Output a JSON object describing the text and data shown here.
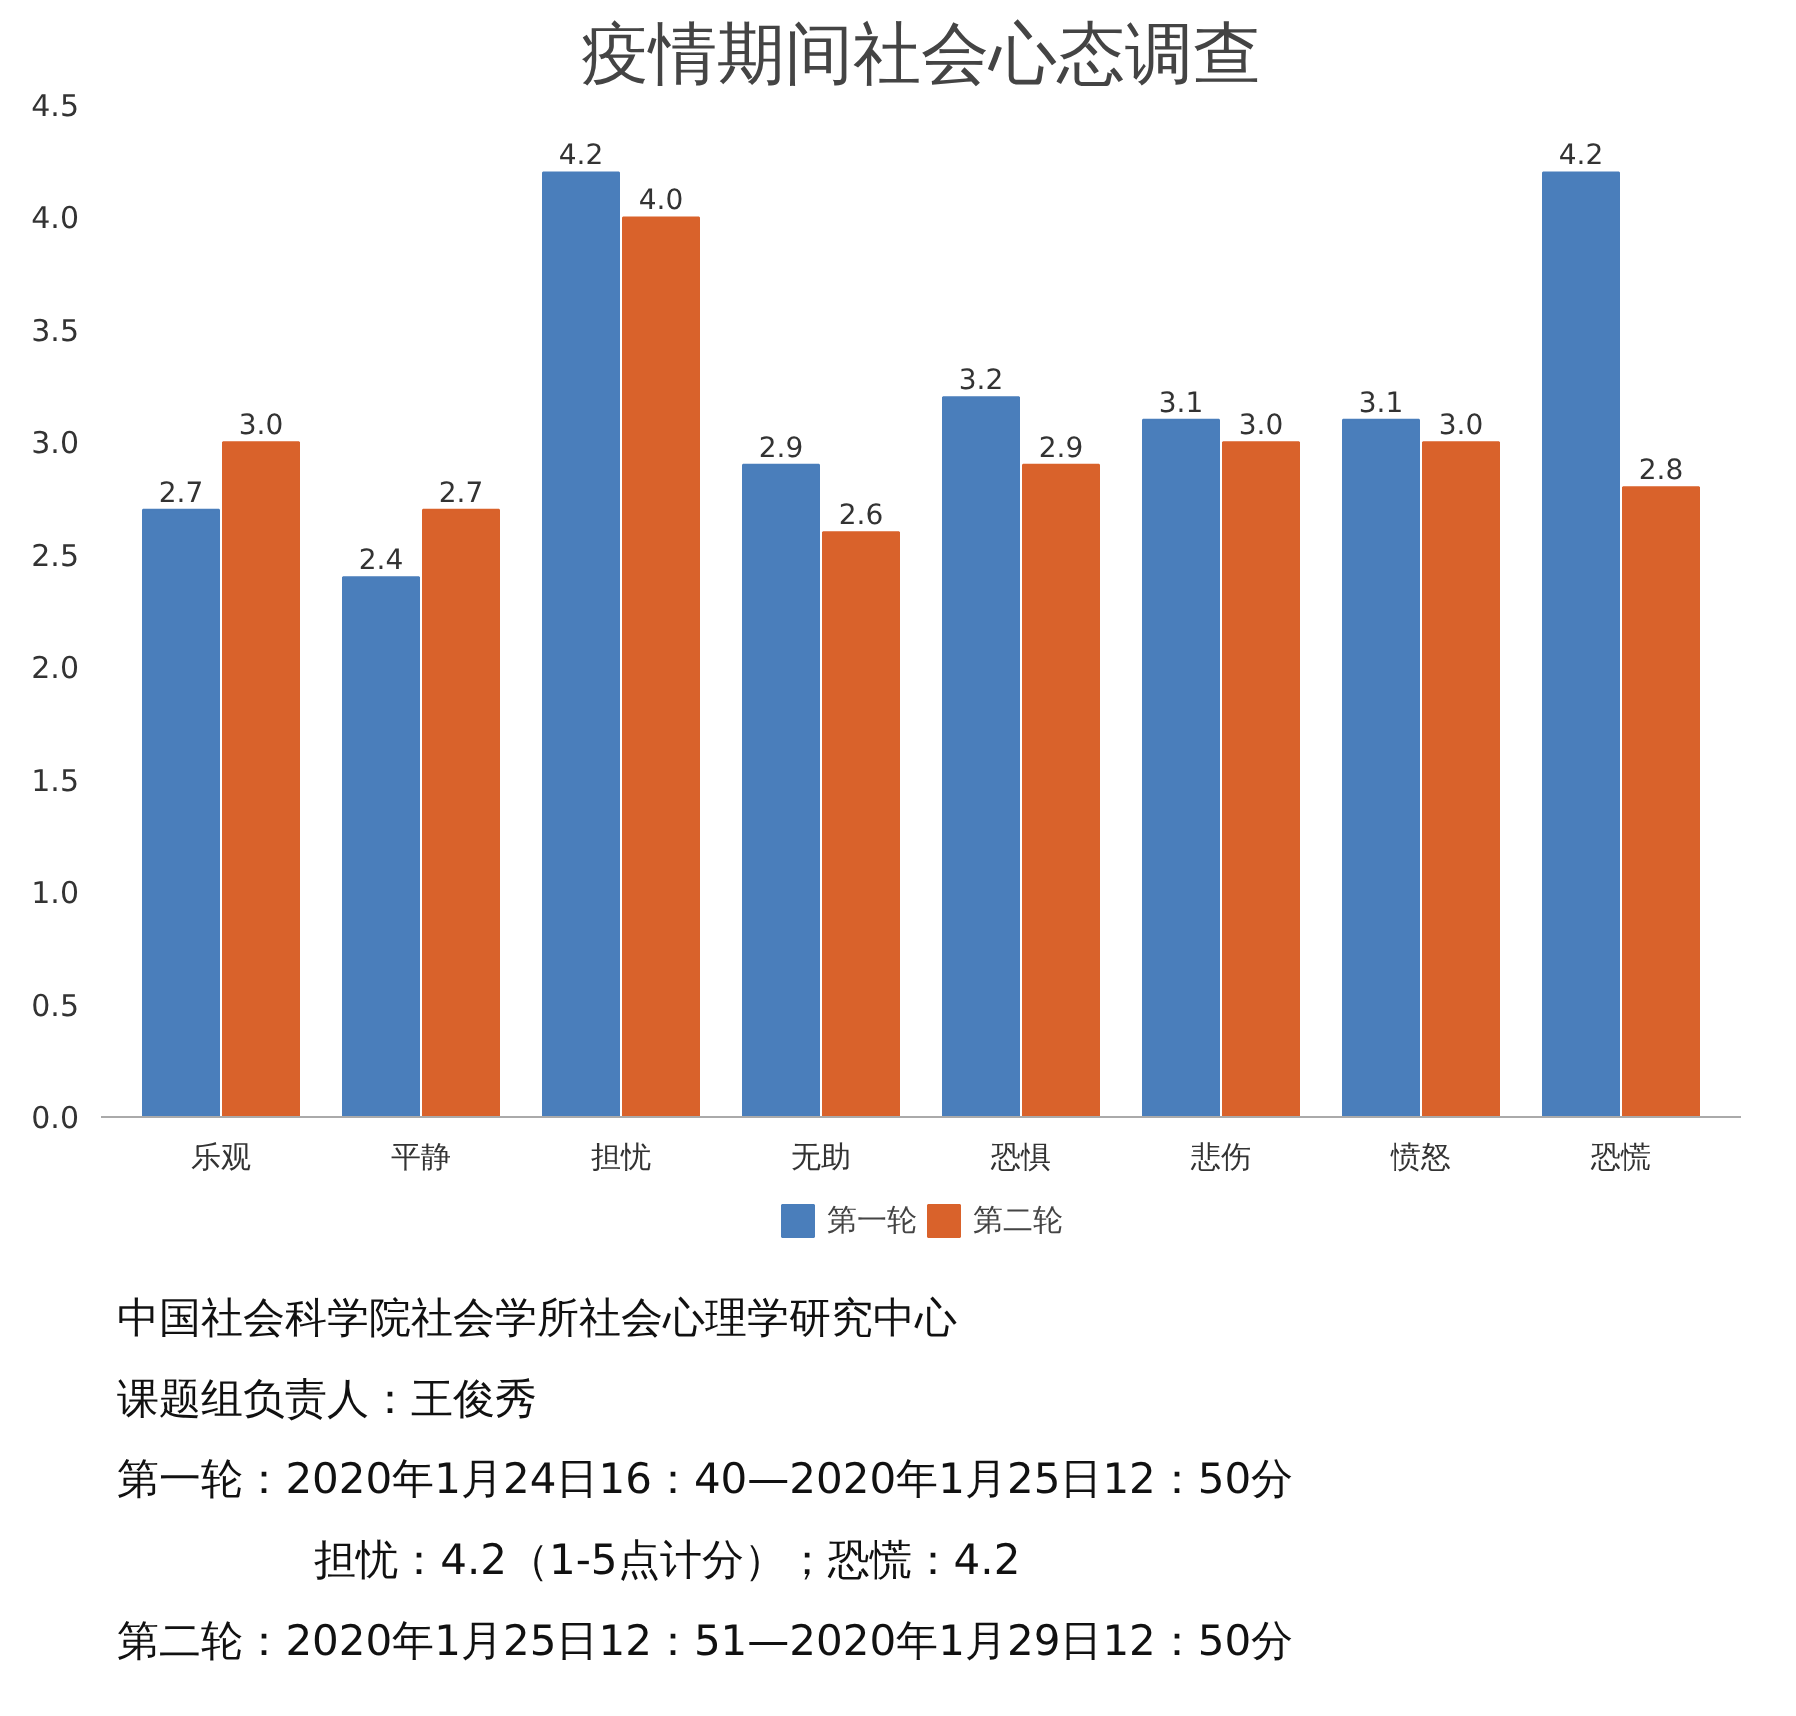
{
  "chart_data": {
    "type": "bar",
    "title": "疫情期间社会心态调查",
    "categories": [
      "乐观",
      "平静",
      "担忧",
      "无助",
      "恐惧",
      "悲伤",
      "愤怒",
      "恐慌"
    ],
    "series": [
      {
        "name": "第一轮",
        "color": "#4a7ebb",
        "values": [
          2.7,
          2.4,
          4.2,
          2.9,
          3.2,
          3.1,
          3.1,
          4.2
        ],
        "value_labels": [
          "2.7",
          "2.4",
          "4.2",
          "2.9",
          "3.2",
          "3.1",
          "3.1",
          "4.2"
        ]
      },
      {
        "name": "第二轮",
        "color": "#d9622b",
        "values": [
          3.0,
          2.7,
          4.0,
          2.6,
          2.9,
          3.0,
          3.0,
          2.8
        ],
        "value_labels": [
          "3.0",
          "2.7",
          "4.0",
          "2.6",
          "2.9",
          "3.0",
          "3.0",
          "2.8"
        ]
      }
    ],
    "ylim": [
      0,
      4.5
    ],
    "yticks": [
      {
        "value": 0,
        "label": "0.0"
      },
      {
        "value": 0.5,
        "label": "0.5"
      },
      {
        "value": 1,
        "label": "1.0"
      },
      {
        "value": 1.5,
        "label": "1.5"
      },
      {
        "value": 2,
        "label": "2.0"
      },
      {
        "value": 2.5,
        "label": "2.5"
      },
      {
        "value": 3,
        "label": "3.0"
      },
      {
        "value": 3.5,
        "label": "3.5"
      },
      {
        "value": 4,
        "label": "4.0"
      },
      {
        "value": 4.5,
        "label": "4.5"
      }
    ],
    "grid": false,
    "legend": "bottom",
    "annotations": [
      "中国社会科学院社会学所社会心理学研究中心",
      "课题组负责人：王俊秀",
      "第一轮：2020年1月24日16：40—2020年1月25日12：50分",
      "担忧：4.2（1-5点计分）；恐慌：4.2",
      "第二轮：2020年1月25日12：51—2020年1月29日12：50分"
    ]
  }
}
